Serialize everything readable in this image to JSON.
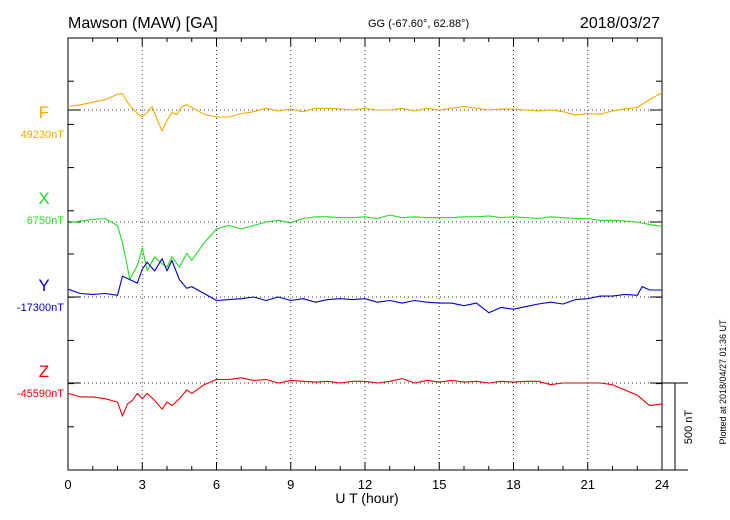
{
  "header": {
    "station": "Mawson (MAW)  [GA]",
    "coords": "GG (-67.60°,  62.88°)",
    "date": "2018/03/27"
  },
  "footer": {
    "plotted": "Plotted at 2018/04/27 01:36 UT",
    "scale_bar": "500 nT"
  },
  "chart_data": {
    "type": "line",
    "xlabel": "U T (hour)",
    "x_ticks": [
      "0",
      "3",
      "6",
      "9",
      "12",
      "15",
      "18",
      "21",
      "24"
    ],
    "xlim": [
      0,
      24
    ],
    "grid": true,
    "series": [
      {
        "name": "F",
        "baseline_label": "49230nT",
        "color": "#f5a800",
        "x": [
          0,
          0.5,
          1,
          1.5,
          2,
          2.2,
          2.4,
          2.6,
          2.8,
          3,
          3.2,
          3.4,
          3.6,
          3.8,
          4,
          4.2,
          4.4,
          4.6,
          4.8,
          5,
          5.5,
          6,
          6.5,
          7,
          7.5,
          8,
          8.5,
          9,
          9.5,
          10,
          10.5,
          11,
          11.5,
          12,
          12.5,
          13,
          13.5,
          14,
          14.5,
          15,
          15.5,
          16,
          16.5,
          17,
          17.5,
          18,
          18.5,
          19,
          19.5,
          20,
          20.5,
          21,
          21.5,
          22,
          22.5,
          23,
          23.5,
          24
        ],
        "y": [
          20,
          30,
          45,
          60,
          90,
          95,
          45,
          10,
          -20,
          -40,
          -15,
          20,
          -55,
          -120,
          -60,
          -15,
          -25,
          20,
          30,
          15,
          -25,
          -40,
          -40,
          -20,
          -10,
          10,
          -5,
          5,
          -10,
          10,
          10,
          5,
          0,
          10,
          0,
          0,
          10,
          -5,
          10,
          0,
          10,
          20,
          10,
          0,
          5,
          5,
          0,
          -5,
          0,
          -10,
          -30,
          -20,
          -25,
          -5,
          5,
          15,
          60,
          100
        ]
      },
      {
        "name": "X",
        "baseline_label": "6750nT",
        "color": "#22dd22",
        "x": [
          0,
          0.5,
          1,
          1.5,
          2,
          2.2,
          2.5,
          2.8,
          3,
          3.2,
          3.5,
          3.8,
          4,
          4.2,
          4.5,
          4.8,
          5,
          5.5,
          6,
          6.5,
          7,
          7.5,
          8,
          8.5,
          9,
          9.5,
          10,
          10.5,
          11,
          11.5,
          12,
          12.5,
          13,
          13.5,
          14,
          14.5,
          15,
          15.5,
          16,
          16.5,
          17,
          17.5,
          18,
          18.5,
          19,
          19.5,
          20,
          20.5,
          21,
          21.5,
          22,
          22.5,
          23,
          23.5,
          24
        ],
        "y": [
          -5,
          5,
          15,
          20,
          -20,
          -120,
          -330,
          -250,
          -150,
          -280,
          -200,
          -240,
          -260,
          -200,
          -260,
          -180,
          -220,
          -120,
          -40,
          -20,
          -40,
          -20,
          0,
          10,
          -5,
          20,
          30,
          30,
          25,
          25,
          30,
          20,
          40,
          25,
          30,
          25,
          25,
          25,
          30,
          30,
          35,
          25,
          30,
          25,
          20,
          30,
          25,
          20,
          20,
          10,
          10,
          5,
          0,
          -15,
          -25
        ]
      },
      {
        "name": "Y",
        "baseline_label": "-17300nT",
        "color": "#0000cc",
        "x": [
          0,
          0.5,
          1,
          1.5,
          2,
          2.2,
          2.5,
          2.8,
          3,
          3.2,
          3.5,
          3.8,
          4,
          4.2,
          4.5,
          4.8,
          5,
          5.5,
          6,
          6.5,
          7,
          7.5,
          8,
          8.5,
          9,
          9.5,
          10,
          10.5,
          11,
          11.5,
          12,
          12.5,
          13,
          13.5,
          14,
          14.5,
          15,
          15.5,
          16,
          16.5,
          17,
          17.5,
          18,
          18.5,
          19,
          19.5,
          20,
          20.5,
          21,
          21.5,
          22,
          22.5,
          23,
          23.2,
          23.5,
          24
        ],
        "y": [
          45,
          20,
          15,
          20,
          10,
          120,
          100,
          80,
          160,
          200,
          150,
          220,
          150,
          210,
          100,
          50,
          60,
          20,
          -20,
          -15,
          -10,
          0,
          -20,
          0,
          -20,
          -10,
          -30,
          -15,
          -10,
          -15,
          -10,
          -30,
          -20,
          -35,
          -20,
          -30,
          -35,
          -35,
          -50,
          -35,
          -90,
          -60,
          -70,
          -55,
          -40,
          -30,
          -40,
          -15,
          -10,
          5,
          5,
          15,
          10,
          60,
          40,
          40
        ]
      },
      {
        "name": "Z",
        "baseline_label": "-45590nT",
        "color": "#ee0000",
        "x": [
          0,
          0.5,
          1,
          1.5,
          2,
          2.2,
          2.4,
          2.6,
          2.8,
          3,
          3.2,
          3.5,
          3.8,
          4,
          4.2,
          4.5,
          4.8,
          5,
          5.5,
          6,
          6.5,
          7,
          7.5,
          8,
          8.5,
          9,
          9.5,
          10,
          10.5,
          11,
          11.5,
          12,
          12.5,
          13,
          13.5,
          14,
          14.5,
          15,
          15.5,
          16,
          16.5,
          17,
          17.5,
          18,
          18.5,
          19,
          19.5,
          20,
          20.5,
          21,
          21.5,
          22,
          22.5,
          23,
          23.5,
          24
        ],
        "y": [
          -60,
          -80,
          -80,
          -90,
          -110,
          -190,
          -120,
          -100,
          -60,
          -90,
          -60,
          -100,
          -150,
          -110,
          -130,
          -90,
          -40,
          -60,
          -10,
          20,
          20,
          30,
          15,
          20,
          0,
          15,
          10,
          5,
          10,
          0,
          10,
          10,
          0,
          10,
          25,
          0,
          15,
          5,
          15,
          5,
          10,
          0,
          10,
          5,
          10,
          10,
          -10,
          0,
          0,
          0,
          0,
          -10,
          -40,
          -70,
          -130,
          -120
        ]
      }
    ]
  }
}
